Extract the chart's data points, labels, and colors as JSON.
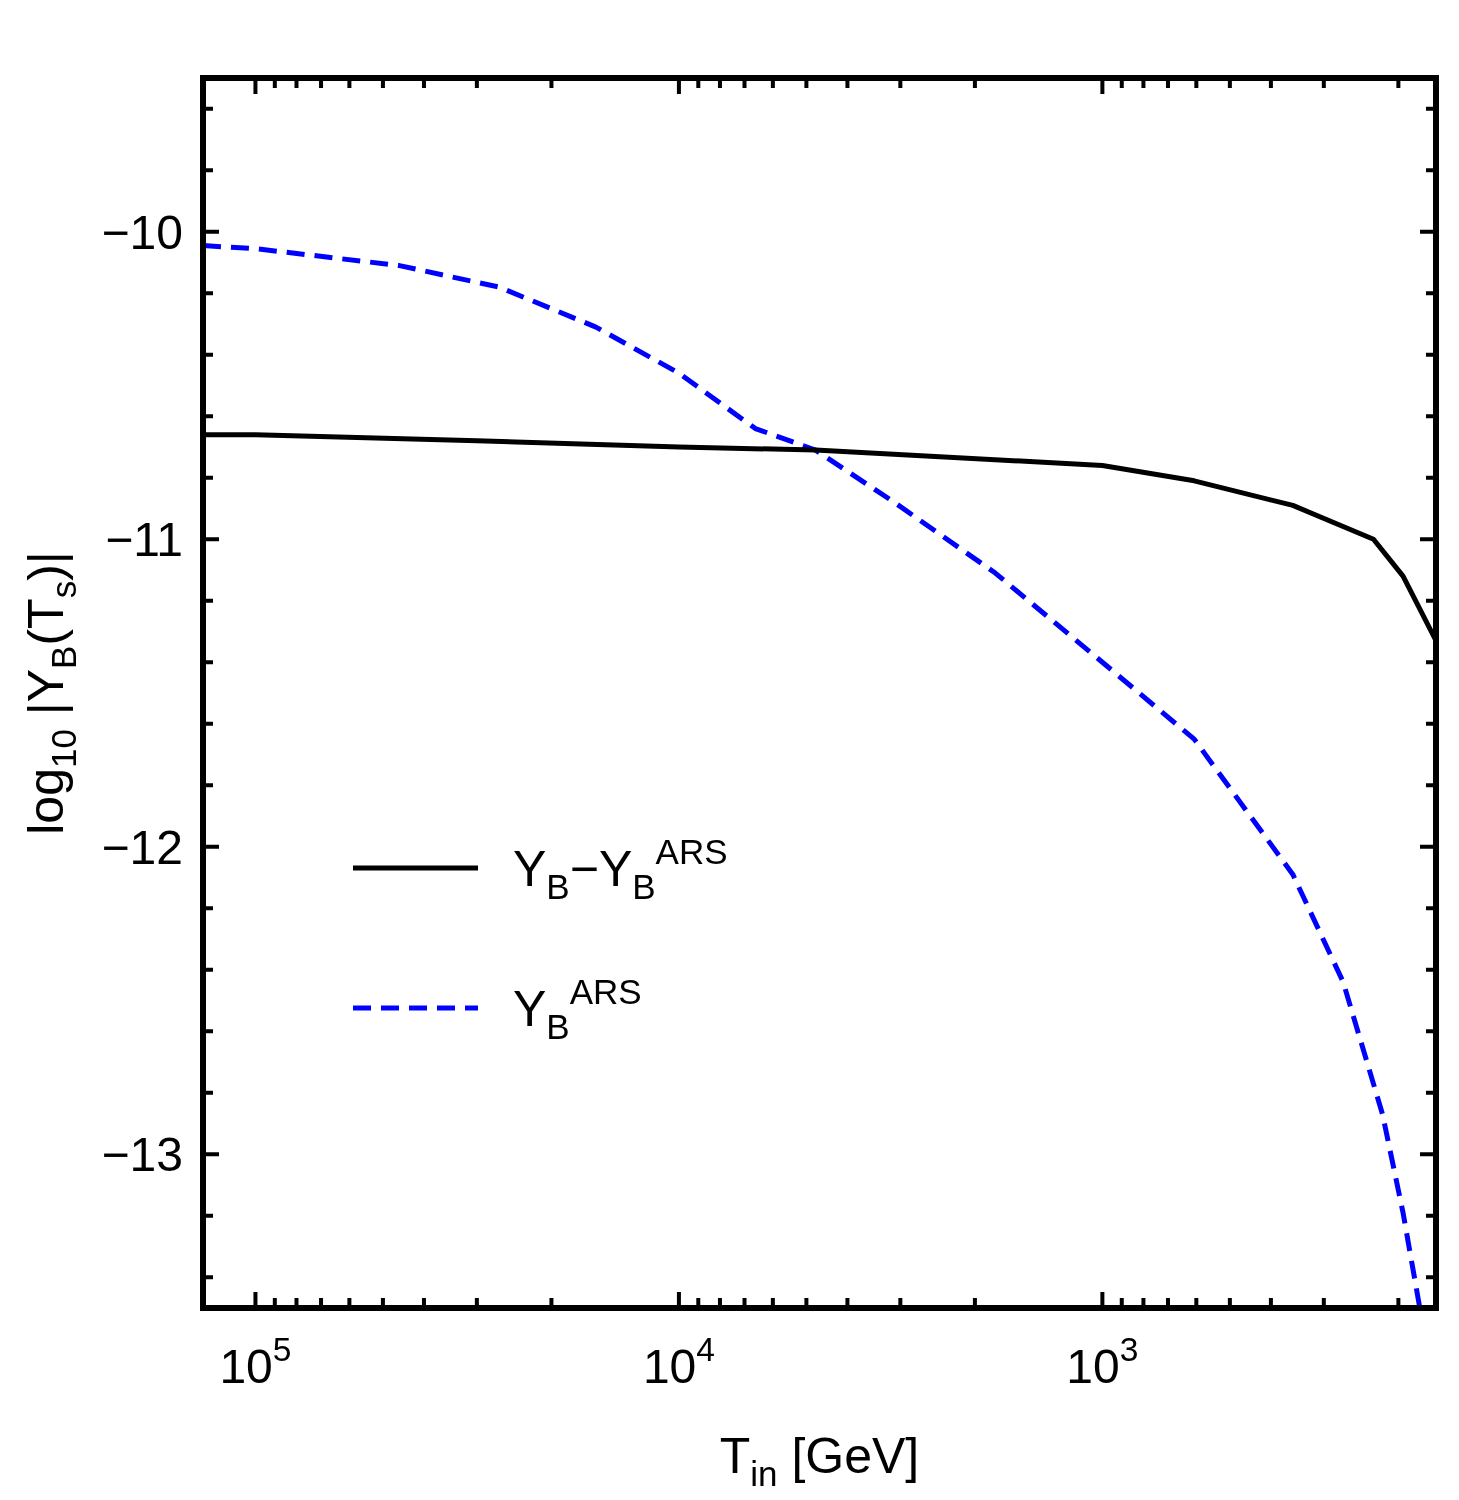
{
  "chart_data": {
    "type": "line",
    "xlabel": "T$_{in}$ [GeV]",
    "ylabel": "log$_{10}$ |Y$_{B}$(T$_{s}$)|",
    "log": "x",
    "xlim": [
      133000,
      163
    ],
    "ylim": [
      -13.5,
      -9.5
    ],
    "xticks": [
      {
        "value": 100000,
        "label": "10$^{5}$"
      },
      {
        "value": 90000,
        "label": null
      },
      {
        "value": 80000,
        "label": null
      },
      {
        "value": 70000,
        "label": null
      },
      {
        "value": 60000,
        "label": null
      },
      {
        "value": 50000,
        "label": null
      },
      {
        "value": 40000,
        "label": null
      },
      {
        "value": 30000,
        "label": null
      },
      {
        "value": 20000,
        "label": null
      },
      {
        "value": 10000,
        "label": "10$^{4}$"
      },
      {
        "value": 9000,
        "label": null
      },
      {
        "value": 8000,
        "label": null
      },
      {
        "value": 7000,
        "label": null
      },
      {
        "value": 6000,
        "label": null
      },
      {
        "value": 5000,
        "label": null
      },
      {
        "value": 4000,
        "label": null
      },
      {
        "value": 3000,
        "label": null
      },
      {
        "value": 2000,
        "label": null
      },
      {
        "value": 1000,
        "label": "10$^{3}$"
      },
      {
        "value": 900,
        "label": null
      },
      {
        "value": 800,
        "label": null
      },
      {
        "value": 700,
        "label": null
      },
      {
        "value": 600,
        "label": null
      },
      {
        "value": 500,
        "label": null
      },
      {
        "value": 400,
        "label": null
      },
      {
        "value": 300,
        "label": null
      },
      {
        "value": 200,
        "label": null
      }
    ],
    "yticks": [
      {
        "value": -9.6,
        "label": null
      },
      {
        "value": -9.8,
        "label": null
      },
      -10,
      {
        "value": -10.2,
        "label": null
      },
      {
        "value": -10.4,
        "label": null
      },
      {
        "value": -10.6,
        "label": null
      },
      {
        "value": -10.8,
        "label": null
      },
      -11,
      {
        "value": -11.2,
        "label": null
      },
      {
        "value": -11.4,
        "label": null
      },
      {
        "value": -11.6,
        "label": null
      },
      {
        "value": -11.8,
        "label": null
      },
      -12,
      {
        "value": -12.2,
        "label": null
      },
      {
        "value": -12.4,
        "label": null
      },
      {
        "value": -12.6,
        "label": null
      },
      {
        "value": -12.8,
        "label": null
      },
      -13,
      {
        "value": -13.2,
        "label": null
      },
      {
        "value": -13.4,
        "label": null
      }
    ],
    "legend": "bottom left",
    "series": [
      {
        "name": "Y$_{B}$−Y$_{B}$$^{ARS}$",
        "color": "#000000",
        "line_style": "solid",
        "x": [
          133000,
          100000,
          30000,
          10000,
          4760,
          1000,
          607,
          355,
          229,
          195,
          163
        ],
        "values": [
          -10.66,
          -10.66,
          -10.68,
          -10.7,
          -10.71,
          -10.76,
          -10.81,
          -10.89,
          -11.0,
          -11.12,
          -11.33
        ]
      },
      {
        "name": "Y$_{B}$$^{ARS}$",
        "color": "#0000ff",
        "line_style": "dashed",
        "x": [
          133000,
          100000,
          45700,
          26600,
          15700,
          10000,
          6600,
          4760,
          3100,
          1790,
          1000,
          607,
          355,
          270,
          218,
          195,
          178
        ],
        "values": [
          -10.045,
          -10.055,
          -10.11,
          -10.18,
          -10.31,
          -10.46,
          -10.64,
          -10.71,
          -10.88,
          -11.11,
          -11.4,
          -11.65,
          -12.09,
          -12.44,
          -12.87,
          -13.19,
          -13.5
        ]
      }
    ]
  }
}
